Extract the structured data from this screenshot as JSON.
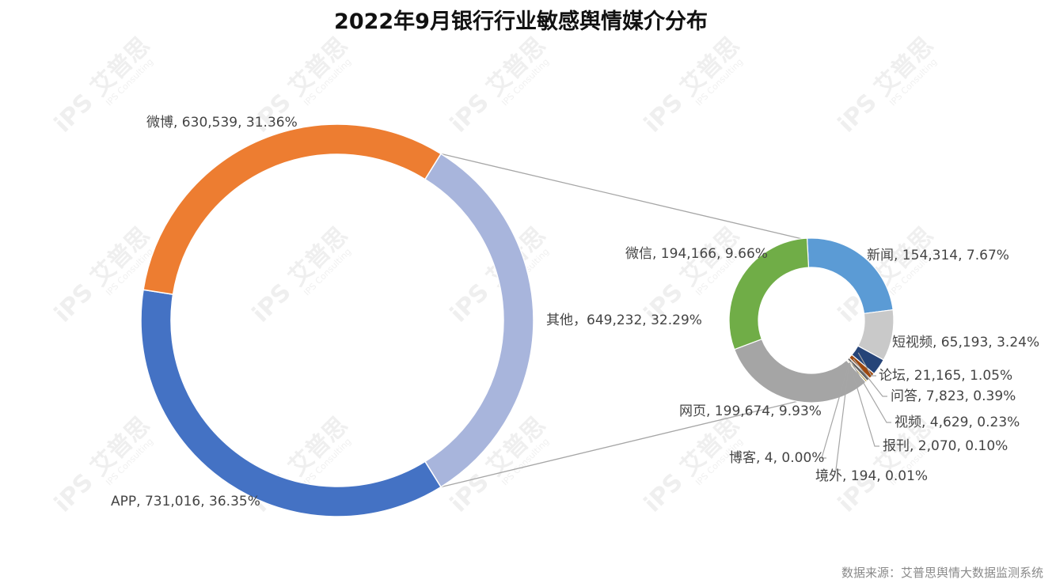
{
  "chart_data": {
    "type": "pie",
    "title": "2022年9月银行行业敏感舆情媒介分布",
    "source": "数据来源：艾普思舆情大数据监测系统",
    "watermark": {
      "main": "艾普思",
      "sub": "IPS Consulting",
      "logo": "iPS"
    },
    "primary": {
      "slices": [
        {
          "name": "其他",
          "value": 649232,
          "percent": 32.29,
          "color": "#A8B5DC",
          "label": "其他，649,232, 32.29%"
        },
        {
          "name": "APP",
          "value": 731016,
          "percent": 36.35,
          "color": "#4472C4",
          "label": "APP, 731,016, 36.35%"
        },
        {
          "name": "微博",
          "value": 630539,
          "percent": 31.36,
          "color": "#ED7D31",
          "label": "微博, 630,539, 31.36%"
        }
      ]
    },
    "secondary": {
      "of": "其他",
      "slices": [
        {
          "name": "新闻",
          "value": 154314,
          "percent": 7.67,
          "color": "#5B9BD5",
          "label": "新闻, 154,314, 7.67%"
        },
        {
          "name": "短视频",
          "value": 65193,
          "percent": 3.24,
          "color": "#C9C9C9",
          "label": "短视频, 65,193, 3.24%"
        },
        {
          "name": "论坛",
          "value": 21165,
          "percent": 1.05,
          "color": "#264478",
          "label": "论坛, 21,165, 1.05%"
        },
        {
          "name": "问答",
          "value": 7823,
          "percent": 0.39,
          "color": "#9E480E",
          "label": "问答, 7,823, 0.39%"
        },
        {
          "name": "视频",
          "value": 4629,
          "percent": 0.23,
          "color": "#636363",
          "label": "视频, 4,629, 0.23%"
        },
        {
          "name": "报刊",
          "value": 2070,
          "percent": 0.1,
          "color": "#997300",
          "label": "报刊, 2,070, 0.10%"
        },
        {
          "name": "境外",
          "value": 194,
          "percent": 0.01,
          "color": "#43682B",
          "label": "境外, 194, 0.01%"
        },
        {
          "name": "博客",
          "value": 4,
          "percent": 0.0,
          "color": "#FFC000",
          "label": "博客, 4, 0.00%"
        },
        {
          "name": "网页",
          "value": 199674,
          "percent": 9.93,
          "color": "#A5A5A5",
          "label": "网页, 199,674, 9.93%"
        },
        {
          "name": "微信",
          "value": 194166,
          "percent": 9.66,
          "color": "#70AD47",
          "label": "微信, 194,166, 9.66%"
        }
      ]
    }
  }
}
